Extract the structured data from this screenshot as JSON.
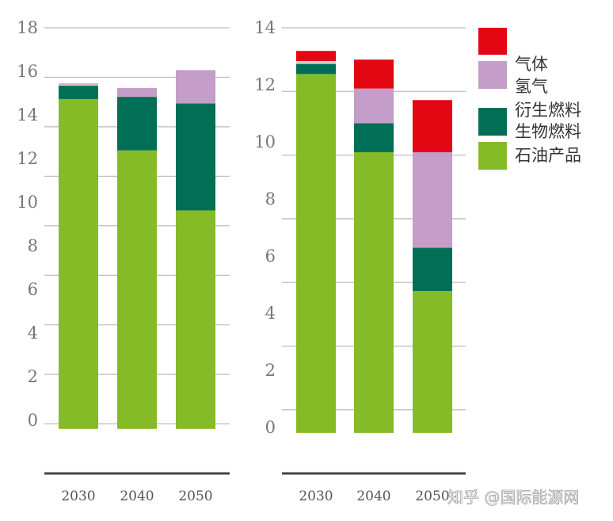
{
  "colors": {
    "petroleum": "#86bb28",
    "biofuel": "#006f56",
    "derived_fuel": "#d0cfcf",
    "hydrogen": "#c49dc8",
    "gas": "#e30613",
    "grid": "#bbbbbb",
    "axis": "#444444"
  },
  "legend": [
    {
      "key": "gas",
      "label": ""
    },
    {
      "key": "hydrogen",
      "label": "气体"
    },
    {
      "key": "derived_fuel",
      "label": "氢气"
    },
    {
      "key": "biofuel",
      "label": "衍生燃料"
    },
    {
      "key": "biofuel",
      "label": "生物燃料"
    },
    {
      "key": "petroleum",
      "label": "石油产品"
    }
  ],
  "watermark": "知乎 @国际能源网",
  "chart_data": [
    {
      "type": "bar",
      "stacked": true,
      "categories": [
        "2030",
        "2040",
        "2050"
      ],
      "ylim": [
        -2,
        18
      ],
      "y_tick_labels": [
        "18",
        "16",
        "14",
        "12",
        "10",
        "8",
        "6",
        "4",
        "2",
        "0"
      ],
      "series": [
        {
          "key": "petroleum",
          "values": [
            14.8,
            12.5,
            9.8
          ]
        },
        {
          "key": "biofuel",
          "values": [
            0.6,
            2.4,
            4.8
          ]
        },
        {
          "key": "derived_fuel",
          "values": [
            0.05,
            0.0,
            0.0
          ]
        },
        {
          "key": "hydrogen",
          "values": [
            0.05,
            0.4,
            1.5
          ]
        },
        {
          "key": "gas",
          "values": [
            0,
            0,
            0
          ]
        }
      ]
    },
    {
      "type": "bar",
      "stacked": true,
      "categories": [
        "2030",
        "2040",
        "2050"
      ],
      "ylim": [
        -1.4,
        14
      ],
      "y_tick_labels": [
        "14",
        "12",
        "10",
        "8",
        "6",
        "4",
        "2",
        "0"
      ],
      "series": [
        {
          "key": "petroleum",
          "values": [
            12.4,
            9.7,
            4.9
          ]
        },
        {
          "key": "biofuel",
          "values": [
            0.35,
            1.0,
            1.5
          ]
        },
        {
          "key": "derived_fuel",
          "values": [
            0.1,
            0.0,
            0.0
          ]
        },
        {
          "key": "hydrogen",
          "values": [
            0.0,
            1.2,
            3.3
          ]
        },
        {
          "key": "gas",
          "values": [
            0.35,
            1.0,
            1.8
          ]
        }
      ]
    }
  ]
}
